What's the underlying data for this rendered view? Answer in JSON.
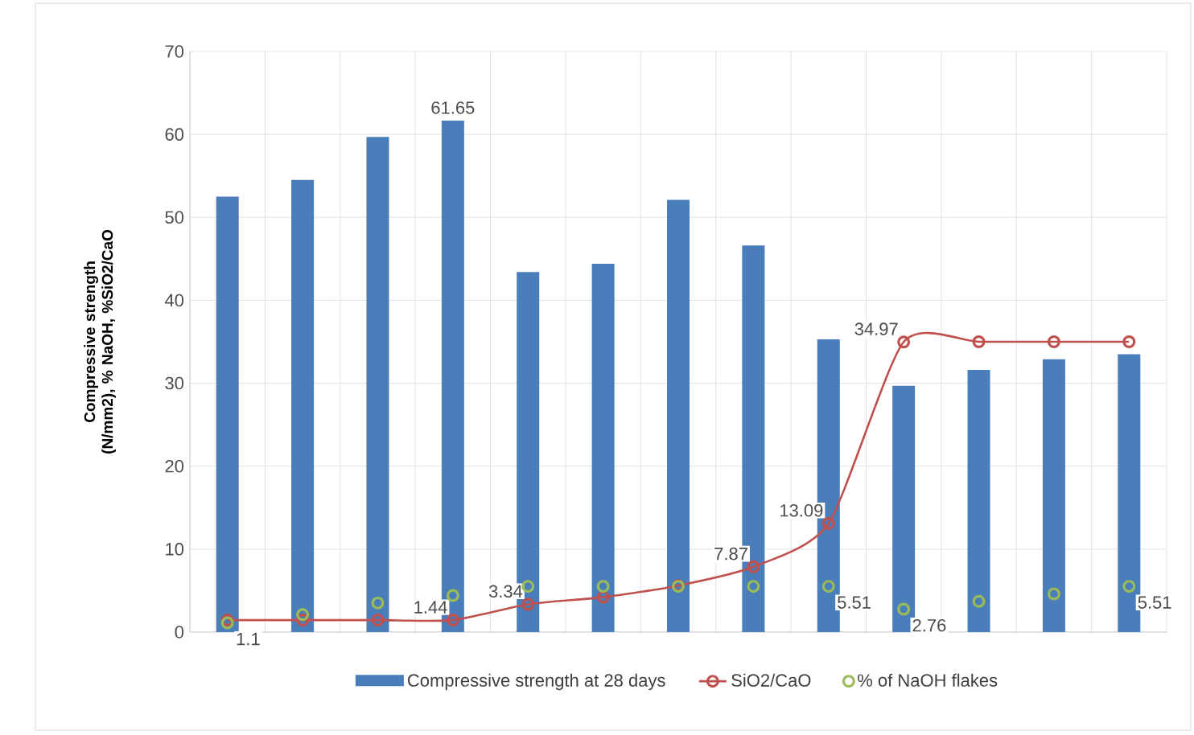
{
  "chart_data": {
    "type": "bar",
    "ylabel": "Compressive strength (N/mm2), % NaOH, %SiO2/CaO",
    "categories": [
      null,
      null,
      null,
      null,
      null,
      null,
      null,
      null,
      null,
      null,
      null,
      null,
      null
    ],
    "ylim": [
      0,
      70
    ],
    "yticks": [
      0,
      10,
      20,
      30,
      40,
      50,
      60,
      70
    ],
    "grid": true,
    "legend": "bottom",
    "series": [
      {
        "name": "Compressive strength at 28 days",
        "type": "bar",
        "color": "#4a7ebb",
        "values": [
          52.5,
          54.5,
          59.7,
          61.65,
          43.4,
          44.4,
          52.1,
          46.6,
          35.3,
          29.7,
          31.6,
          32.9,
          33.5
        ],
        "value_labels": [
          null,
          null,
          null,
          "61.65",
          null,
          null,
          null,
          null,
          null,
          null,
          null,
          null,
          null
        ]
      },
      {
        "name": "SiO2/CaO",
        "type": "line",
        "color": "#c0504d",
        "marker": "circle",
        "line_style": "solid",
        "values": [
          1.44,
          1.44,
          1.44,
          1.44,
          3.34,
          4.2,
          5.6,
          7.87,
          13.09,
          34.97,
          35,
          35,
          35
        ],
        "value_labels": [
          null,
          null,
          null,
          "1.44",
          "3.34",
          null,
          null,
          "7.87",
          "13.09",
          "34.97",
          null,
          null,
          null
        ]
      },
      {
        "name": "% of NaOH flakes",
        "type": "scatter",
        "color": "#9bbb59",
        "marker": "circle",
        "values": [
          1.1,
          2.1,
          3.5,
          4.4,
          5.51,
          5.51,
          5.51,
          5.51,
          5.51,
          2.76,
          3.7,
          4.6,
          5.51
        ],
        "value_labels": [
          "1.1",
          null,
          null,
          null,
          null,
          null,
          null,
          null,
          "5.51",
          "2.76",
          null,
          null,
          "5.51"
        ]
      }
    ]
  }
}
